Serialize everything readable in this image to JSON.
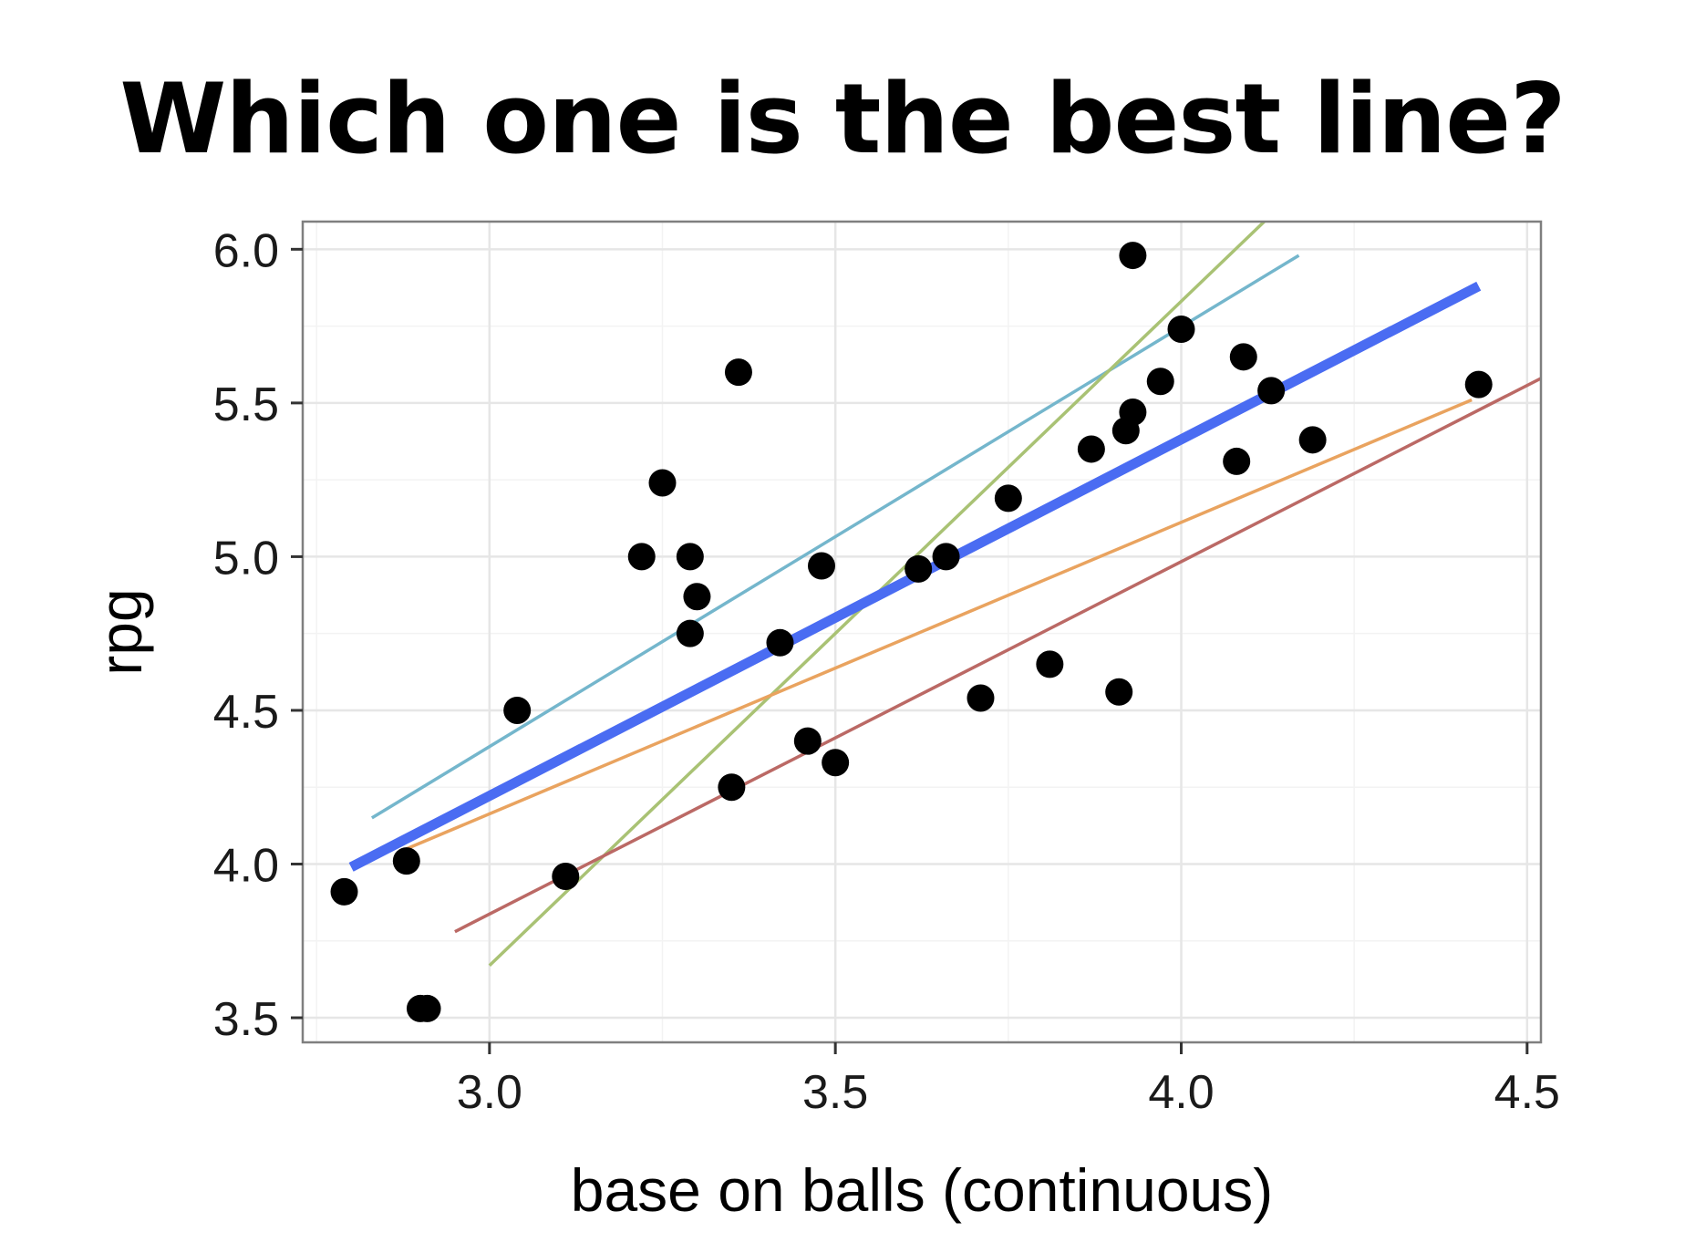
{
  "slide": {
    "title": "Which one is the best line?"
  },
  "chart_data": {
    "type": "scatter",
    "title": "",
    "xlabel": "base on balls (continuous)",
    "ylabel": "rpg",
    "xlim": [
      2.73,
      4.52
    ],
    "ylim": [
      3.42,
      6.09
    ],
    "x_ticks": [
      3.0,
      3.5,
      4.0,
      4.5
    ],
    "x_tick_labels": [
      "3.0",
      "3.5",
      "4.0",
      "4.5"
    ],
    "y_ticks": [
      3.5,
      4.0,
      4.5,
      5.0,
      5.5,
      6.0
    ],
    "y_tick_labels": [
      "3.5",
      "4.0",
      "4.5",
      "5.0",
      "5.5",
      "6.0"
    ],
    "grid": true,
    "legend": "none",
    "point_color": "#000000",
    "points": [
      {
        "x": 2.79,
        "y": 3.91
      },
      {
        "x": 2.88,
        "y": 4.01
      },
      {
        "x": 2.9,
        "y": 3.53
      },
      {
        "x": 2.91,
        "y": 3.53
      },
      {
        "x": 3.04,
        "y": 4.5
      },
      {
        "x": 3.11,
        "y": 3.96
      },
      {
        "x": 3.22,
        "y": 5.0
      },
      {
        "x": 3.25,
        "y": 5.24
      },
      {
        "x": 3.29,
        "y": 5.0
      },
      {
        "x": 3.3,
        "y": 4.87
      },
      {
        "x": 3.29,
        "y": 4.75
      },
      {
        "x": 3.35,
        "y": 4.25
      },
      {
        "x": 3.36,
        "y": 5.6
      },
      {
        "x": 3.42,
        "y": 4.72
      },
      {
        "x": 3.46,
        "y": 4.4
      },
      {
        "x": 3.48,
        "y": 4.97
      },
      {
        "x": 3.5,
        "y": 4.33
      },
      {
        "x": 3.62,
        "y": 4.96
      },
      {
        "x": 3.66,
        "y": 5.0
      },
      {
        "x": 3.71,
        "y": 4.54
      },
      {
        "x": 3.75,
        "y": 5.19
      },
      {
        "x": 3.81,
        "y": 4.65
      },
      {
        "x": 3.87,
        "y": 5.35
      },
      {
        "x": 3.91,
        "y": 4.56
      },
      {
        "x": 3.92,
        "y": 5.41
      },
      {
        "x": 3.93,
        "y": 5.47
      },
      {
        "x": 3.93,
        "y": 5.98
      },
      {
        "x": 3.97,
        "y": 5.57
      },
      {
        "x": 4.0,
        "y": 5.74
      },
      {
        "x": 4.08,
        "y": 5.31
      },
      {
        "x": 4.09,
        "y": 5.65
      },
      {
        "x": 4.13,
        "y": 5.54
      },
      {
        "x": 4.19,
        "y": 5.38
      },
      {
        "x": 4.43,
        "y": 5.56
      }
    ],
    "lines": [
      {
        "color": "#4a6cf2",
        "width": "thick",
        "x": [
          2.8,
          4.43
        ],
        "y": [
          3.99,
          5.88
        ]
      },
      {
        "color": "#74b6cc",
        "width": "thin",
        "x": [
          2.83,
          4.17
        ],
        "y": [
          4.15,
          5.98
        ]
      },
      {
        "color": "#a9c274",
        "width": "thin",
        "x": [
          3.0,
          4.12
        ],
        "y": [
          3.67,
          6.09
        ]
      },
      {
        "color": "#e9a35f",
        "width": "thin",
        "x": [
          2.87,
          4.42
        ],
        "y": [
          4.04,
          5.51
        ]
      },
      {
        "color": "#bb6965",
        "width": "thin",
        "x": [
          2.95,
          4.52
        ],
        "y": [
          3.78,
          5.58
        ]
      }
    ]
  }
}
